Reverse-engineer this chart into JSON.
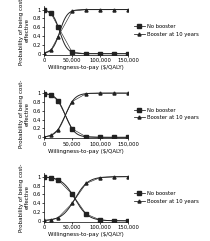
{
  "subplots": [
    {
      "ylabel": "Probability of being cost-\neffective",
      "xlabel": "Willingness-to-pay ($/QALY)",
      "xticks": [
        0,
        50000,
        100000,
        150000
      ],
      "xticklabels": [
        "0",
        "50,000",
        "100,000",
        "150,000"
      ],
      "yticks": [
        0,
        0.2,
        0.4,
        0.6,
        0.8,
        1
      ],
      "ylim": [
        -0.02,
        1.08
      ],
      "xlim": [
        0,
        150000
      ],
      "crossover": 28000,
      "legend": [
        "No booster",
        "Booster at 10 years"
      ]
    },
    {
      "ylabel": "Probability of being cost-\neffective",
      "xlabel": "Willingness-to-pay ($/QALY)",
      "xticks": [
        0,
        50000,
        100000,
        150000
      ],
      "xticklabels": [
        "0",
        "50,000",
        "100,000",
        "150,000"
      ],
      "yticks": [
        0,
        0.2,
        0.4,
        0.6,
        0.8,
        1
      ],
      "ylim": [
        -0.02,
        1.08
      ],
      "xlim": [
        0,
        150000
      ],
      "crossover": 38000,
      "legend": [
        "No booster",
        "Booster at 10 years"
      ]
    },
    {
      "ylabel": "Probability of being cost-\neffective",
      "xlabel": "Willingness-to-pay ($/QALY)",
      "xticks": [
        0,
        50000,
        100000,
        150000
      ],
      "xticklabels": [
        "0",
        "50,000",
        "100,000",
        "150,000"
      ],
      "yticks": [
        0,
        0.2,
        0.4,
        0.6,
        0.8,
        1
      ],
      "ylim": [
        -0.02,
        1.08
      ],
      "xlim": [
        0,
        150000
      ],
      "crossover": 55000,
      "legend": [
        "No booster",
        "Booster at 10 years"
      ]
    }
  ],
  "crossovers": [
    28000,
    38000,
    55000
  ],
  "steepness": [
    0.00015,
    0.00012,
    8.5e-05
  ],
  "marker_color": "#222222",
  "line_color": "#222222",
  "no_booster_marker": "s",
  "booster_marker": "^",
  "marker_size": 2.2,
  "line_width": 0.7,
  "label_fontsize": 4.0,
  "tick_fontsize": 3.8,
  "legend_fontsize": 3.8,
  "fig_width": 2.1,
  "fig_height": 2.41
}
